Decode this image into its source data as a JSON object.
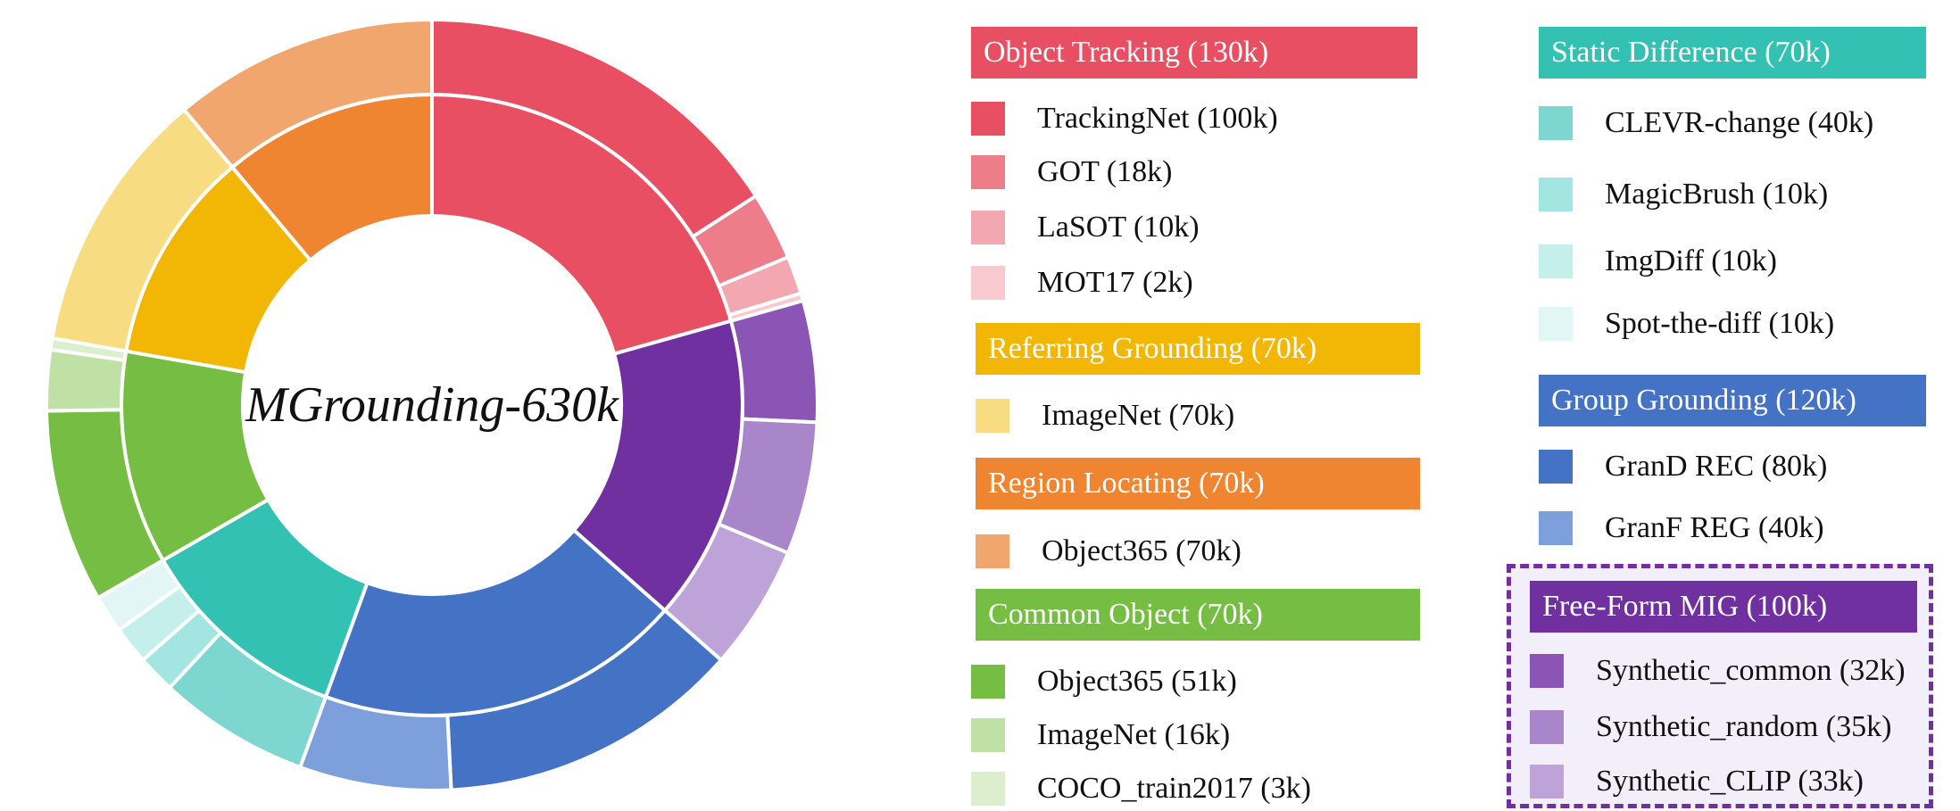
{
  "chart_data": {
    "type": "pie",
    "center_label": "MGrounding-630k",
    "groups": [
      {
        "id": "object-tracking",
        "label": "Object Tracking (130k)",
        "value": 130,
        "color": "#e84f62",
        "items": [
          {
            "label": "TrackingNet (100k)",
            "value": 100,
            "color": "#e84f62"
          },
          {
            "label": "GOT (18k)",
            "value": 18,
            "color": "#ee7d8a"
          },
          {
            "label": "LaSOT (10k)",
            "value": 10,
            "color": "#f3a7b0"
          },
          {
            "label": "MOT17 (2k)",
            "value": 2,
            "color": "#f8c9cf"
          }
        ]
      },
      {
        "id": "free-form-mig",
        "label": "Free-Form MIG (100k)",
        "value": 100,
        "color": "#7030a0",
        "items": [
          {
            "label": "Synthetic_common (32k)",
            "value": 32,
            "color": "#8a55b5"
          },
          {
            "label": "Synthetic_random (35k)",
            "value": 35,
            "color": "#a886c9"
          },
          {
            "label": "Synthetic_CLIP (33k)",
            "value": 33,
            "color": "#bea3d8"
          }
        ]
      },
      {
        "id": "group-grounding",
        "label": "Group Grounding (120k)",
        "value": 120,
        "color": "#4472c4",
        "items": [
          {
            "label": "GranD REC (80k)",
            "value": 80,
            "color": "#4472c4"
          },
          {
            "label": "GranF REG (40k)",
            "value": 40,
            "color": "#7d9fdc"
          }
        ]
      },
      {
        "id": "static-difference",
        "label": "Static Difference (70k)",
        "value": 70,
        "color": "#33c1b4",
        "items": [
          {
            "label": "CLEVR-change (40k)",
            "value": 40,
            "color": "#7dd6cf"
          },
          {
            "label": "MagicBrush (10k)",
            "value": 10,
            "color": "#a3e6e1"
          },
          {
            "label": "ImgDiff (10k)",
            "value": 10,
            "color": "#c5efeb"
          },
          {
            "label": "Spot-the-diff (10k)",
            "value": 10,
            "color": "#e2f7f5"
          }
        ]
      },
      {
        "id": "common-object",
        "label": "Common Object (70k)",
        "value": 70,
        "color": "#76bd43",
        "items": [
          {
            "label": "Object365 (51k)",
            "value": 51,
            "color": "#76bd43"
          },
          {
            "label": "ImageNet (16k)",
            "value": 16,
            "color": "#bfe1a6"
          },
          {
            "label": "COCO_train2017 (3k)",
            "value": 3,
            "color": "#dbeecd"
          }
        ]
      },
      {
        "id": "referring-grounding",
        "label": "Referring Grounding (70k)",
        "value": 70,
        "color": "#f2b705",
        "items": [
          {
            "label": "ImageNet (70k)",
            "value": 70,
            "color": "#f8dc82"
          }
        ]
      },
      {
        "id": "region-locating",
        "label": "Region Locating (70k)",
        "value": 70,
        "color": "#ef8431",
        "items": [
          {
            "label": "Object365 (70k)",
            "value": 70,
            "color": "#f1a66e"
          }
        ]
      }
    ]
  }
}
